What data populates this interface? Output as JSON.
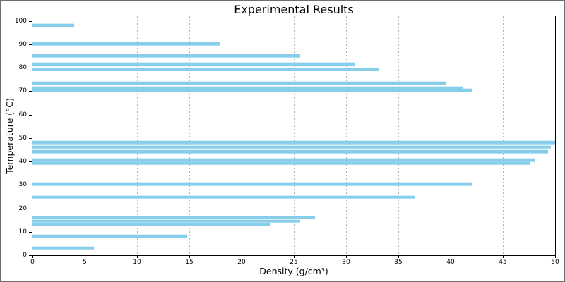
{
  "window": {
    "background": "#ffffff",
    "border_color": "#6e6e6e"
  },
  "chart_data": {
    "type": "bar",
    "orientation": "horizontal",
    "title": "Experimental Results",
    "xlabel": "Density (g/cm³)",
    "ylabel": "Temperature (°C)",
    "xlim": [
      0,
      50
    ],
    "ylim": [
      0,
      102
    ],
    "xticks": [
      0,
      5,
      10,
      15,
      20,
      25,
      30,
      35,
      40,
      45,
      50
    ],
    "yticks": [
      0,
      10,
      20,
      30,
      40,
      50,
      60,
      70,
      80,
      90,
      100
    ],
    "grid": {
      "vertical": true,
      "horizontal": false,
      "style": "dashed",
      "color": "#b5b5b5"
    },
    "legend": "none",
    "bar_color": "#87CEEB",
    "bar_height_units": 1.4,
    "points": [
      {
        "temperature": 98.0,
        "density": 4.0
      },
      {
        "temperature": 90.3,
        "density": 18.0
      },
      {
        "temperature": 85.1,
        "density": 25.6
      },
      {
        "temperature": 81.5,
        "density": 30.9
      },
      {
        "temperature": 79.2,
        "density": 33.2
      },
      {
        "temperature": 73.4,
        "density": 39.5
      },
      {
        "temperature": 71.4,
        "density": 41.2
      },
      {
        "temperature": 70.3,
        "density": 42.1
      },
      {
        "temperature": 48.0,
        "density": 50.0
      },
      {
        "temperature": 46.1,
        "density": 49.6
      },
      {
        "temperature": 44.1,
        "density": 49.3
      },
      {
        "temperature": 40.6,
        "density": 48.1
      },
      {
        "temperature": 39.2,
        "density": 47.6
      },
      {
        "temperature": 30.3,
        "density": 42.1
      },
      {
        "temperature": 24.8,
        "density": 36.6
      },
      {
        "temperature": 16.0,
        "density": 27.0
      },
      {
        "temperature": 14.5,
        "density": 25.6
      },
      {
        "temperature": 13.0,
        "density": 22.7
      },
      {
        "temperature": 8.1,
        "density": 14.8
      },
      {
        "temperature": 3.1,
        "density": 5.9
      }
    ]
  }
}
